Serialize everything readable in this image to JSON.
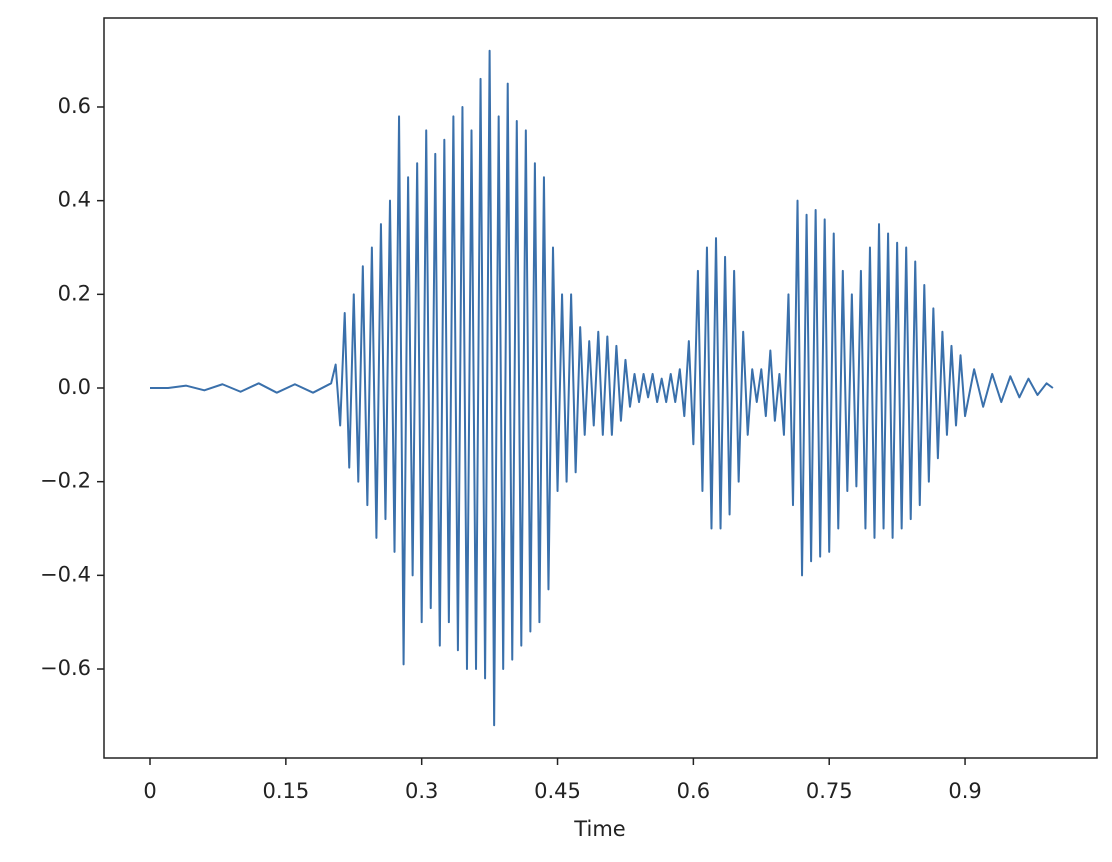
{
  "chart_data": {
    "type": "line",
    "xlabel": "Time",
    "color": "#3a70ab",
    "xlim": [
      -0.0508,
      1.0457
    ],
    "ylim": [
      -0.79,
      0.79
    ],
    "xticks": [
      0,
      0.15,
      0.3,
      0.45,
      0.6,
      0.75,
      0.9
    ],
    "yticks": [
      {
        "value": -0.6,
        "label": "−0.6"
      },
      {
        "value": -0.4,
        "label": "−0.4"
      },
      {
        "value": -0.2,
        "label": "−0.2"
      },
      {
        "value": 0,
        "label": "0.0"
      },
      0.2,
      0.4,
      0.6
    ],
    "x": [
      0,
      0.02,
      0.04,
      0.06,
      0.08,
      0.1,
      0.12,
      0.14,
      0.16,
      0.18,
      0.2,
      0.205,
      0.21,
      0.215,
      0.22,
      0.225,
      0.23,
      0.235,
      0.24,
      0.245,
      0.25,
      0.255,
      0.26,
      0.265,
      0.27,
      0.275,
      0.28,
      0.285,
      0.29,
      0.295,
      0.3,
      0.305,
      0.31,
      0.315,
      0.32,
      0.325,
      0.33,
      0.335,
      0.34,
      0.345,
      0.35,
      0.355,
      0.36,
      0.365,
      0.37,
      0.375,
      0.38,
      0.385,
      0.39,
      0.395,
      0.4,
      0.405,
      0.41,
      0.415,
      0.42,
      0.425,
      0.43,
      0.435,
      0.44,
      0.445,
      0.45,
      0.455,
      0.46,
      0.465,
      0.47,
      0.475,
      0.48,
      0.485,
      0.49,
      0.495,
      0.5,
      0.505,
      0.51,
      0.515,
      0.52,
      0.525,
      0.53,
      0.535,
      0.54,
      0.545,
      0.55,
      0.555,
      0.56,
      0.565,
      0.57,
      0.575,
      0.58,
      0.585,
      0.59,
      0.595,
      0.6,
      0.605,
      0.61,
      0.615,
      0.62,
      0.625,
      0.63,
      0.635,
      0.64,
      0.645,
      0.65,
      0.655,
      0.66,
      0.665,
      0.67,
      0.675,
      0.68,
      0.685,
      0.69,
      0.695,
      0.7,
      0.705,
      0.71,
      0.715,
      0.72,
      0.725,
      0.73,
      0.735,
      0.74,
      0.745,
      0.75,
      0.755,
      0.76,
      0.765,
      0.77,
      0.775,
      0.78,
      0.785,
      0.79,
      0.795,
      0.8,
      0.805,
      0.81,
      0.815,
      0.82,
      0.825,
      0.83,
      0.835,
      0.84,
      0.845,
      0.85,
      0.855,
      0.86,
      0.865,
      0.87,
      0.875,
      0.88,
      0.885,
      0.89,
      0.895,
      0.9,
      0.91,
      0.92,
      0.93,
      0.94,
      0.95,
      0.96,
      0.97,
      0.98,
      0.99,
      0.997
    ],
    "values": [
      0,
      0,
      0.005,
      -0.005,
      0.008,
      -0.008,
      0.01,
      -0.01,
      0.008,
      -0.01,
      0.01,
      0.05,
      -0.08,
      0.16,
      -0.17,
      0.2,
      -0.2,
      0.26,
      -0.25,
      0.3,
      -0.32,
      0.35,
      -0.28,
      0.4,
      -0.35,
      0.58,
      -0.59,
      0.45,
      -0.4,
      0.48,
      -0.5,
      0.55,
      -0.47,
      0.5,
      -0.55,
      0.53,
      -0.5,
      0.58,
      -0.56,
      0.6,
      -0.6,
      0.55,
      -0.6,
      0.66,
      -0.62,
      0.72,
      -0.72,
      0.58,
      -0.6,
      0.65,
      -0.58,
      0.57,
      -0.55,
      0.55,
      -0.52,
      0.48,
      -0.5,
      0.45,
      -0.43,
      0.3,
      -0.22,
      0.2,
      -0.2,
      0.2,
      -0.18,
      0.13,
      -0.1,
      0.1,
      -0.08,
      0.12,
      -0.1,
      0.11,
      -0.1,
      0.09,
      -0.07,
      0.06,
      -0.04,
      0.03,
      -0.03,
      0.03,
      -0.02,
      0.03,
      -0.03,
      0.02,
      -0.03,
      0.03,
      -0.03,
      0.04,
      -0.06,
      0.1,
      -0.12,
      0.25,
      -0.22,
      0.3,
      -0.3,
      0.32,
      -0.3,
      0.28,
      -0.27,
      0.25,
      -0.2,
      0.12,
      -0.1,
      0.04,
      -0.03,
      0.04,
      -0.06,
      0.08,
      -0.07,
      0.03,
      -0.1,
      0.2,
      -0.25,
      0.4,
      -0.4,
      0.37,
      -0.37,
      0.38,
      -0.36,
      0.36,
      -0.35,
      0.33,
      -0.3,
      0.25,
      -0.22,
      0.2,
      -0.21,
      0.25,
      -0.3,
      0.3,
      -0.32,
      0.35,
      -0.3,
      0.33,
      -0.32,
      0.31,
      -0.3,
      0.3,
      -0.28,
      0.27,
      -0.25,
      0.22,
      -0.2,
      0.17,
      -0.15,
      0.12,
      -0.1,
      0.09,
      -0.08,
      0.07,
      -0.06,
      0.04,
      -0.04,
      0.03,
      -0.03,
      0.025,
      -0.02,
      0.02,
      -0.015,
      0.01,
      0
    ]
  }
}
